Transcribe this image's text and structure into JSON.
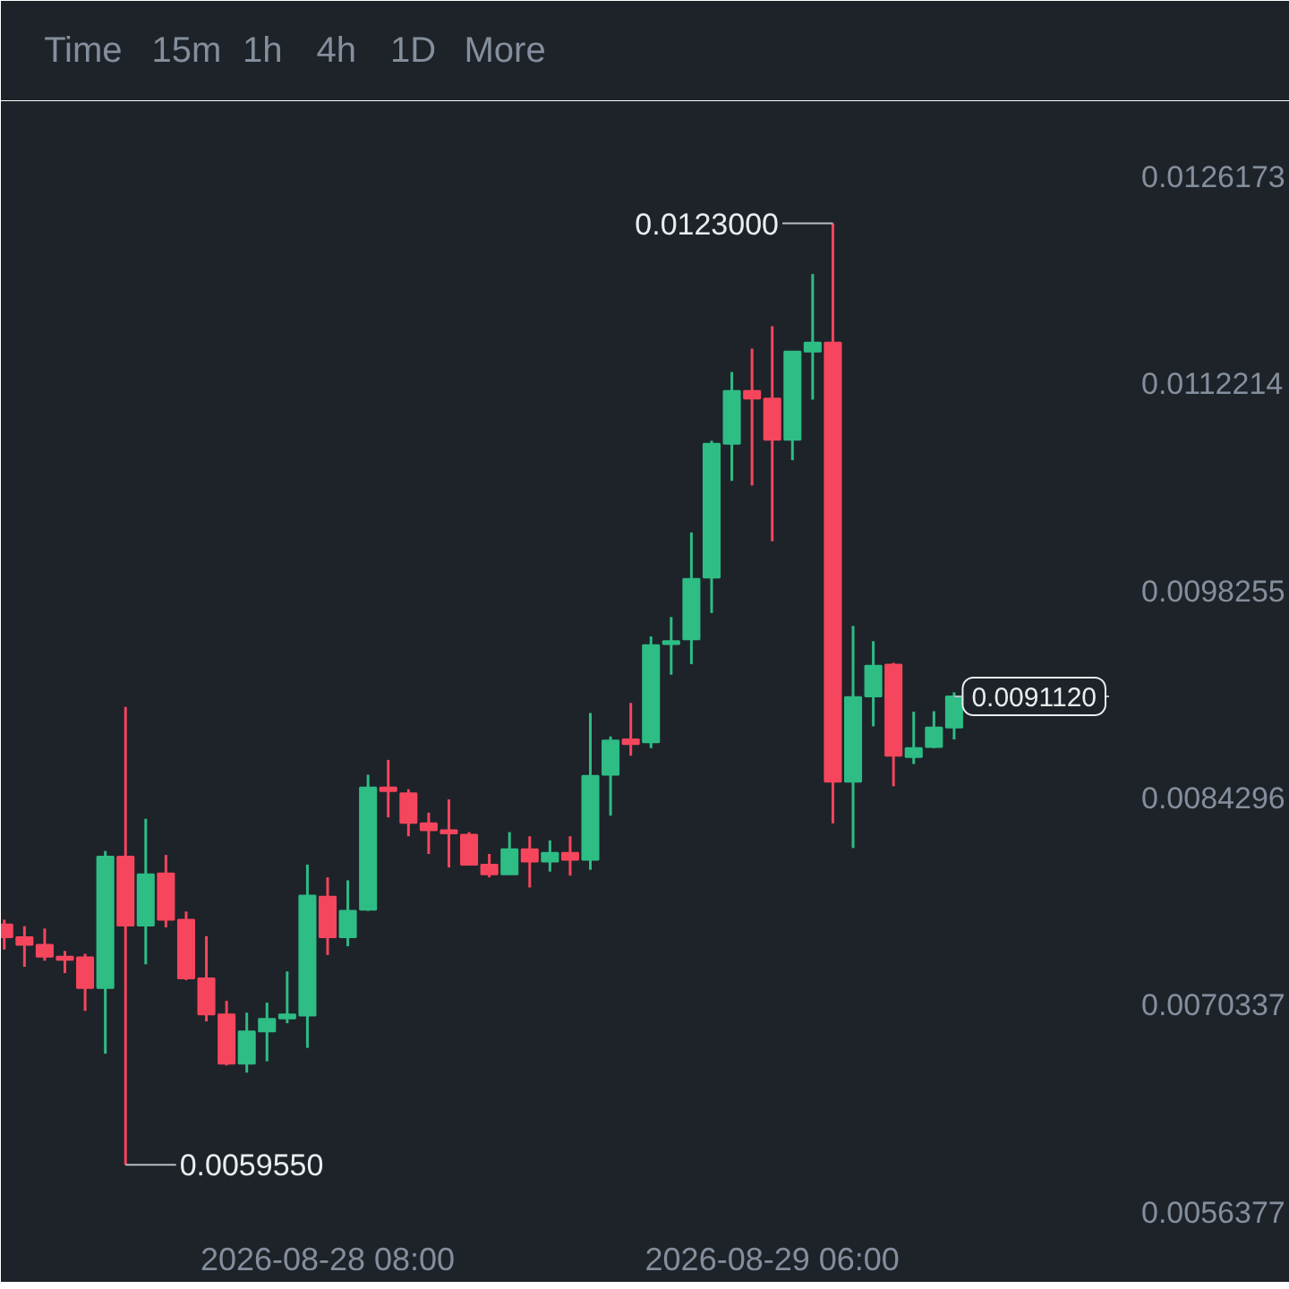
{
  "chart_data": {
    "type": "candlestick",
    "x": [
      "2026-08-27T16:00",
      "2026-08-27T17:00",
      "2026-08-27T18:00",
      "2026-08-27T19:00",
      "2026-08-27T20:00",
      "2026-08-27T21:00",
      "2026-08-27T22:00",
      "2026-08-27T23:00",
      "2026-08-28T00:00",
      "2026-08-28T01:00",
      "2026-08-28T02:00",
      "2026-08-28T03:00",
      "2026-08-28T04:00",
      "2026-08-28T05:00",
      "2026-08-28T06:00",
      "2026-08-28T07:00",
      "2026-08-28T08:00",
      "2026-08-28T09:00",
      "2026-08-28T10:00",
      "2026-08-28T11:00",
      "2026-08-28T12:00",
      "2026-08-28T13:00",
      "2026-08-28T14:00",
      "2026-08-28T15:00",
      "2026-08-28T16:00",
      "2026-08-28T17:00",
      "2026-08-28T18:00",
      "2026-08-28T19:00",
      "2026-08-28T20:00",
      "2026-08-28T21:00",
      "2026-08-28T22:00",
      "2026-08-28T23:00",
      "2026-08-29T00:00",
      "2026-08-29T01:00",
      "2026-08-29T02:00",
      "2026-08-29T03:00",
      "2026-08-29T04:00",
      "2026-08-29T05:00",
      "2026-08-29T06:00",
      "2026-08-29T07:00",
      "2026-08-29T08:00",
      "2026-08-29T09:00",
      "2026-08-29T10:00",
      "2026-08-29T11:00",
      "2026-08-29T12:00",
      "2026-08-29T13:00",
      "2026-08-29T14:00",
      "2026-08-29T15:00"
    ],
    "ohlc": [
      [
        0.007574,
        0.007607,
        0.007405,
        0.007488
      ],
      [
        0.007488,
        0.007563,
        0.007289,
        0.007437
      ],
      [
        0.007437,
        0.007547,
        0.00733,
        0.007357
      ],
      [
        0.007357,
        0.007396,
        0.007247,
        0.007337
      ],
      [
        0.007353,
        0.007377,
        0.006992,
        0.007147
      ],
      [
        0.007147,
        0.00807,
        0.006704,
        0.008031
      ],
      [
        0.008031,
        0.009041,
        0.005955,
        0.007567
      ],
      [
        0.007567,
        0.008287,
        0.007306,
        0.007912
      ],
      [
        0.007919,
        0.008043,
        0.007555,
        0.007607
      ],
      [
        0.007607,
        0.007662,
        0.007199,
        0.007211
      ],
      [
        0.007211,
        0.007496,
        0.006921,
        0.006969
      ],
      [
        0.006969,
        0.00706,
        0.006624,
        0.006636
      ],
      [
        0.006636,
        0.00698,
        0.006576,
        0.006854
      ],
      [
        0.006854,
        0.007048,
        0.006652,
        0.006938
      ],
      [
        0.006941,
        0.007258,
        0.006909,
        0.006969
      ],
      [
        0.006961,
        0.007978,
        0.006743,
        0.007769
      ],
      [
        0.007761,
        0.007892,
        0.007369,
        0.007488
      ],
      [
        0.007488,
        0.007872,
        0.007428,
        0.007666
      ],
      [
        0.007674,
        0.008584,
        0.007666,
        0.008498
      ],
      [
        0.008498,
        0.008684,
        0.008296,
        0.008474
      ],
      [
        0.008459,
        0.008486,
        0.008169,
        0.00826
      ],
      [
        0.008257,
        0.008328,
        0.00805,
        0.008209
      ],
      [
        0.008209,
        0.008418,
        0.007959,
        0.008189
      ],
      [
        0.00818,
        0.008197,
        0.007971,
        0.007978
      ],
      [
        0.007978,
        0.00805,
        0.007892,
        0.007912
      ],
      [
        0.007912,
        0.008197,
        0.007912,
        0.008082
      ],
      [
        0.008082,
        0.008169,
        0.007824,
        0.007999
      ],
      [
        0.007999,
        0.008141,
        0.007931,
        0.008058
      ],
      [
        0.008058,
        0.008169,
        0.007904,
        0.008011
      ],
      [
        0.008011,
        0.009,
        0.007943,
        0.008577
      ],
      [
        0.008584,
        0.008842,
        0.008308,
        0.008815
      ],
      [
        0.008822,
        0.009068,
        0.008712,
        0.008791
      ],
      [
        0.008803,
        0.009516,
        0.008763,
        0.009457
      ],
      [
        0.009464,
        0.009647,
        0.009258,
        0.009484
      ],
      [
        0.009496,
        0.010217,
        0.009329,
        0.009903
      ],
      [
        0.009912,
        0.010835,
        0.009674,
        0.010815
      ],
      [
        0.010815,
        0.011298,
        0.010565,
        0.011171
      ],
      [
        0.011171,
        0.011456,
        0.010533,
        0.01112
      ],
      [
        0.01112,
        0.011607,
        0.010158,
        0.010842
      ],
      [
        0.010842,
        0.011436,
        0.010704,
        0.011436
      ],
      [
        0.011436,
        0.011959,
        0.011112,
        0.011496
      ],
      [
        0.011496,
        0.0123,
        0.008257,
        0.008537
      ],
      [
        0.008537,
        0.009587,
        0.00809,
        0.009107
      ],
      [
        0.009112,
        0.009484,
        0.00891,
        0.009318
      ],
      [
        0.009326,
        0.009338,
        0.008506,
        0.008712
      ],
      [
        0.008703,
        0.009009,
        0.008656,
        0.008763
      ],
      [
        0.008771,
        0.009012,
        0.008763,
        0.008902
      ],
      [
        0.008902,
        0.009139,
        0.008822,
        0.009112
      ]
    ],
    "colors": [
      "#f6465d",
      "#f6465d",
      "#f6465d",
      "#f6465d",
      "#f6465d",
      "#2ebd85",
      "#f6465d",
      "#2ebd85",
      "#f6465d",
      "#f6465d",
      "#f6465d",
      "#f6465d",
      "#2ebd85",
      "#2ebd85",
      "#2ebd85",
      "#2ebd85",
      "#f6465d",
      "#2ebd85",
      "#2ebd85",
      "#f6465d",
      "#f6465d",
      "#f6465d",
      "#f6465d",
      "#f6465d",
      "#f6465d",
      "#2ebd85",
      "#f6465d",
      "#2ebd85",
      "#f6465d",
      "#2ebd85",
      "#2ebd85",
      "#f6465d",
      "#2ebd85",
      "#2ebd85",
      "#2ebd85",
      "#2ebd85",
      "#2ebd85",
      "#f6465d",
      "#f6465d",
      "#2ebd85",
      "#2ebd85",
      "#f6465d",
      "#2ebd85",
      "#2ebd85",
      "#f6465d",
      "#2ebd85",
      "#2ebd85",
      "#2ebd85"
    ],
    "xlim": [
      "2026-08-27T15:50",
      "2026-08-29T22:40"
    ],
    "xticks": [
      {
        "value": "2026-08-28T08:00",
        "label": "2026-08-28 08:00"
      },
      {
        "value": "2026-08-29T06:00",
        "label": "2026-08-29 06:00"
      }
    ],
    "ylim": [
      0.00557,
      0.0131
    ],
    "yticks": [
      0.0126173,
      0.0112214,
      0.0098255,
      0.0084296,
      0.0070337,
      0.0056377
    ],
    "ref_lines": [
      {
        "axis": "y",
        "value": 0.009112,
        "label": "0.0091120",
        "line_style": "dashed",
        "color": "#b7bdc6"
      }
    ],
    "annotations": [
      "Time",
      "15m",
      "1h",
      "4h",
      "1D",
      "More",
      {
        "text": "0.0123000",
        "x": "2026-08-29T09:00",
        "y": 0.0123
      },
      {
        "text": "0.0059550",
        "x": "2026-08-27T22:00",
        "y": 0.005955
      }
    ],
    "grid": false
  }
}
